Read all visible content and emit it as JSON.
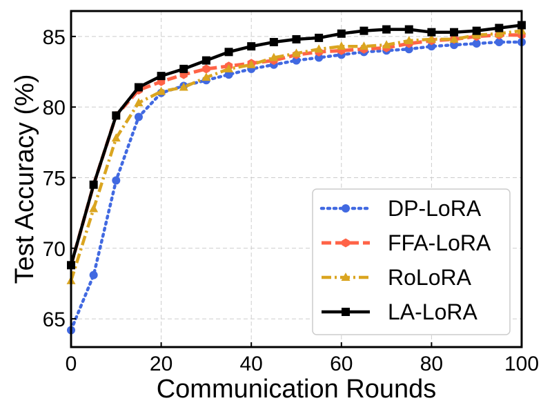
{
  "chart_data": {
    "type": "line",
    "title": "",
    "xlabel": "Communication Rounds",
    "ylabel": "Test Accuracy (%)",
    "xlim": [
      0,
      100
    ],
    "ylim": [
      63,
      86.8
    ],
    "xticks": [
      0,
      20,
      40,
      60,
      80,
      100
    ],
    "yticks": [
      65,
      70,
      75,
      80,
      85
    ],
    "grid": true,
    "legend_position": "lower-right",
    "x": [
      0,
      5,
      10,
      15,
      20,
      25,
      30,
      35,
      40,
      45,
      50,
      55,
      60,
      65,
      70,
      75,
      80,
      85,
      90,
      95,
      100
    ],
    "series": [
      {
        "name": "DP-LoRA",
        "color": "#4169E1",
        "line_style": "dotted",
        "marker": "circle",
        "values": [
          64.2,
          68.1,
          74.8,
          79.3,
          81.0,
          81.5,
          81.9,
          82.3,
          82.7,
          83.0,
          83.3,
          83.5,
          83.7,
          83.9,
          84.0,
          84.1,
          84.3,
          84.4,
          84.5,
          84.6,
          84.6
        ]
      },
      {
        "name": "FFA-LoRA",
        "color": "#FF6347",
        "line_style": "dashed",
        "marker": "hexagon",
        "values": [
          68.8,
          74.5,
          79.4,
          81.2,
          81.8,
          82.3,
          82.7,
          82.9,
          83.1,
          83.3,
          83.7,
          83.9,
          84.0,
          84.1,
          84.2,
          84.5,
          84.7,
          84.8,
          85.0,
          85.1,
          85.1
        ]
      },
      {
        "name": "RoLoRA",
        "color": "#DAA520",
        "line_style": "dashdot",
        "marker": "triangle",
        "values": [
          67.7,
          72.8,
          77.8,
          80.3,
          81.1,
          81.4,
          82.1,
          82.7,
          83.0,
          83.5,
          83.8,
          84.1,
          84.3,
          84.3,
          84.4,
          84.7,
          84.8,
          84.8,
          85.1,
          85.2,
          85.4
        ]
      },
      {
        "name": "LA-LoRA",
        "color": "#000000",
        "line_style": "solid",
        "marker": "square",
        "values": [
          68.8,
          74.5,
          79.4,
          81.4,
          82.2,
          82.7,
          83.3,
          83.9,
          84.3,
          84.6,
          84.8,
          84.9,
          85.2,
          85.4,
          85.5,
          85.5,
          85.3,
          85.3,
          85.4,
          85.6,
          85.8
        ]
      }
    ]
  }
}
